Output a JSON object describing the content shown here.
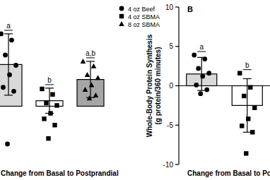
{
  "chart_data": [
    {
      "type": "bar",
      "categories": [
        null,
        null,
        null
      ],
      "names": [
        "4 oz Beef",
        "4 oz SBMA",
        "8 oz SBMA"
      ],
      "values": [
        5.3,
        0.7,
        3.4
      ],
      "errors": [
        3.9,
        1.6,
        2.3
      ],
      "points": [
        [
          9.2,
          8.4,
          6.5,
          5.2,
          4.0,
          2.4,
          1.9,
          -4.8
        ],
        [
          2.2,
          1.5,
          0.4,
          0.1,
          -0.9,
          -1.6,
          -2.4,
          -4.1
        ],
        [
          5.7,
          5.1,
          4.0,
          3.6,
          2.7,
          2.1,
          1.4,
          1.0
        ]
      ],
      "colors": [
        "#d9d9d9",
        "#ffffff",
        "#a6a6a6"
      ],
      "markers": [
        "circle",
        "square",
        "triangle"
      ],
      "letters": [
        "a",
        "b",
        "a,b"
      ],
      "x_label": "Change from Basal to Postprandial",
      "ylim": [
        -7.4,
        12.6
      ],
      "tick_labels": false,
      "legend": "top-right"
    },
    {
      "type": "bar",
      "panel_label": "B",
      "categories": [
        null,
        null
      ],
      "values": [
        1.5,
        -2.5
      ],
      "errors": [
        2.1,
        3.4
      ],
      "points": [
        [
          3.9,
          3.4,
          2.2,
          1.6,
          1.2,
          0.1,
          -0.5,
          -1.0
        ],
        [
          1.6,
          -0.2,
          -1.3,
          -2.8,
          -4.2,
          -5.1,
          -5.9,
          -8.6
        ]
      ],
      "colors": [
        "#d9d9d9",
        "#ffffff"
      ],
      "markers": [
        "circle",
        "square"
      ],
      "letters": [
        "a",
        "b"
      ],
      "y_label": [
        "Whole-Body Protein Synthesis",
        "(g protein/360 minutes)"
      ],
      "x_label": "Change from Basal to Pos",
      "ylim": [
        -10,
        10
      ],
      "yticks": [
        -10,
        -5,
        0,
        5,
        10
      ]
    }
  ]
}
